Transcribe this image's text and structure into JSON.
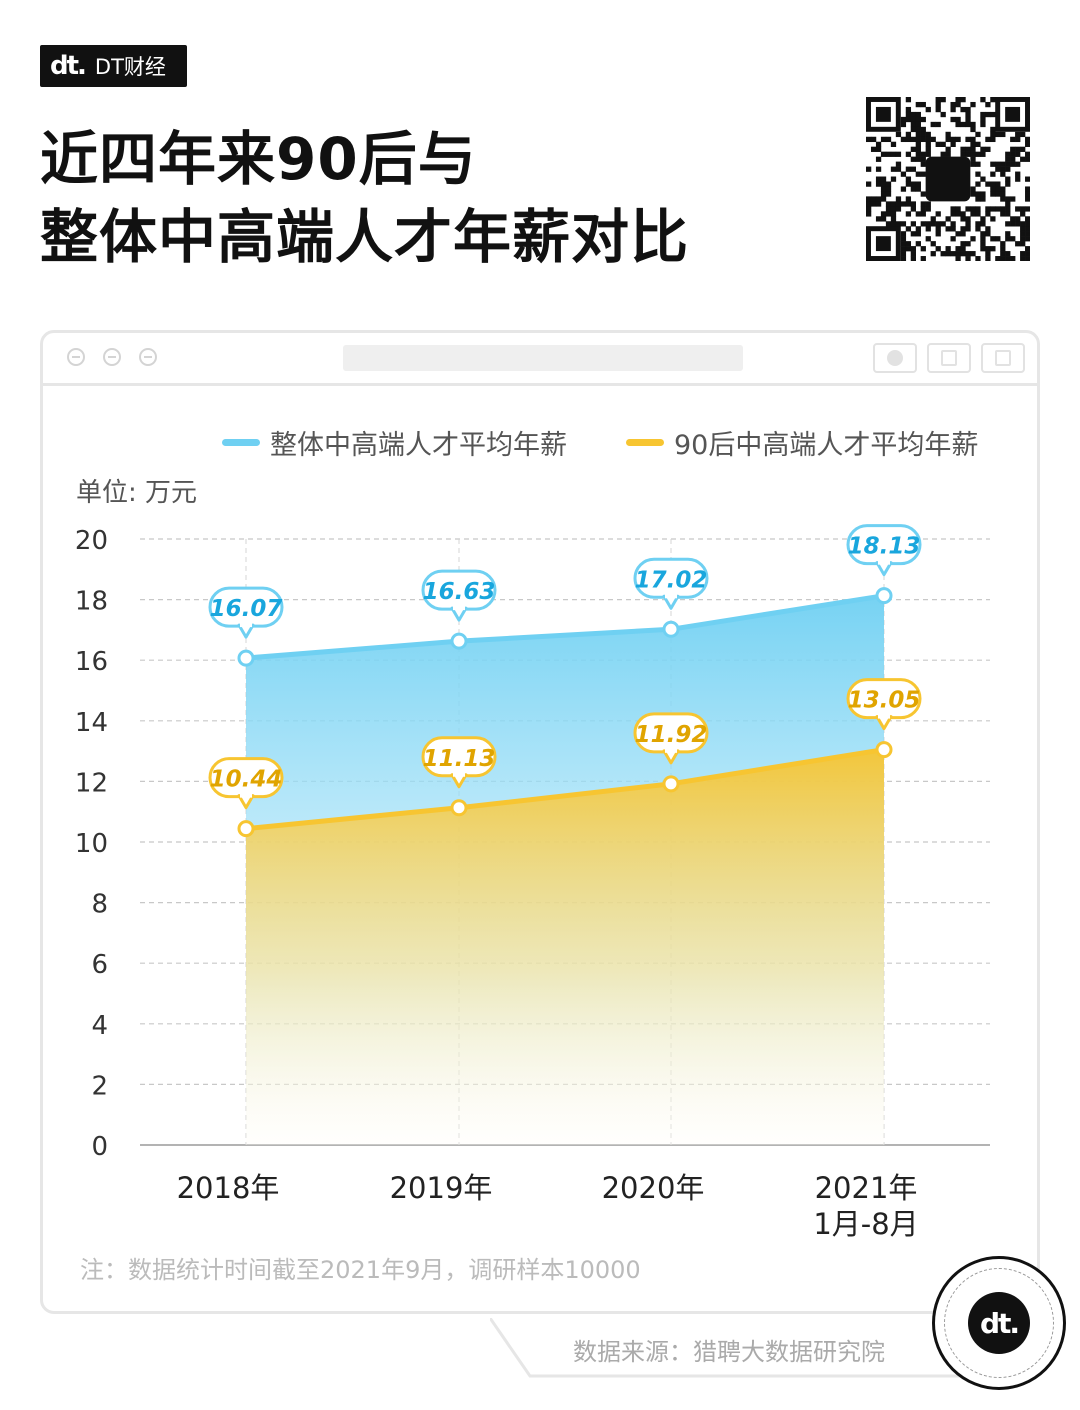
{
  "brand": {
    "logo_mark": "dt.",
    "name": "DT财经"
  },
  "title": {
    "line1": "近四年来90后与",
    "line2": "整体中高端人才年薪对比"
  },
  "qr_icon": "qr-code",
  "window_icons": [
    "close-icon",
    "minimize-icon",
    "block-icon",
    "record-icon",
    "share-icon",
    "duplicate-icon"
  ],
  "colors": {
    "overall": "#6fd0f2",
    "gen90": "#f7c531",
    "overall_label": "#19a6dd",
    "gen90_label": "#e0a400"
  },
  "chart_data": {
    "type": "area",
    "categories": [
      "2018年",
      "2019年",
      "2020年",
      "2021年\n1月-8月"
    ],
    "series": [
      {
        "name": "整体中高端人才平均年薪",
        "values": [
          16.07,
          16.63,
          17.02,
          18.13
        ]
      },
      {
        "name": "90后中高端人才平均年薪",
        "values": [
          10.44,
          11.13,
          11.92,
          13.05
        ]
      }
    ],
    "ylabel": "单位: 万元",
    "ylim": [
      0,
      20
    ],
    "yticks": [
      0,
      2,
      4,
      6,
      8,
      10,
      12,
      14,
      16,
      18,
      20
    ],
    "grid": true,
    "legend": "top-right",
    "data_labels": true
  },
  "note": "注：数据统计时间截至2021年9月，调研样本10000",
  "source": "数据来源：猎聘大数据研究院",
  "badge": {
    "logo_mark": "dt."
  }
}
